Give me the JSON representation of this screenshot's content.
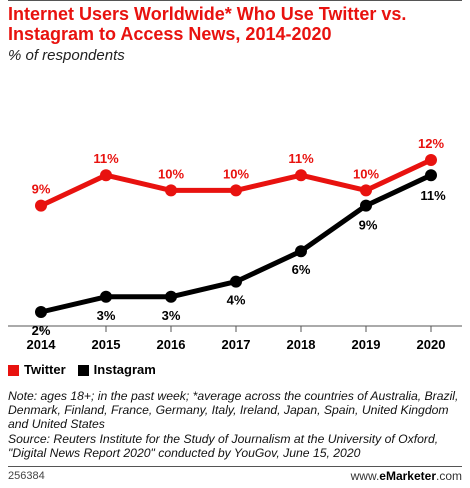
{
  "header": {
    "title": "Internet Users Worldwide* Who Use Twitter vs. Instagram to Access News, 2014-2020",
    "subtitle": "% of respondents"
  },
  "colors": {
    "twitter": "#e8120f",
    "instagram": "#000000",
    "axis": "#555555"
  },
  "chart_data": {
    "type": "line",
    "title": "Internet Users Worldwide* Who Use Twitter vs. Instagram to Access News, 2014-2020",
    "subtitle": "% of respondents",
    "x": [
      "2014",
      "2015",
      "2016",
      "2017",
      "2018",
      "2019",
      "2020"
    ],
    "series": [
      {
        "name": "Twitter",
        "color": "#e8120f",
        "values": [
          9,
          11,
          10,
          10,
          11,
          10,
          12
        ],
        "labels": [
          "9%",
          "11%",
          "10%",
          "10%",
          "11%",
          "10%",
          "12%"
        ]
      },
      {
        "name": "Instagram",
        "color": "#000000",
        "values": [
          2,
          3,
          3,
          4,
          6,
          9,
          11
        ],
        "labels": [
          "2%",
          "3%",
          "3%",
          "4%",
          "6%",
          "9%",
          "11%"
        ]
      }
    ],
    "legend_position": "bottom-left",
    "grid": false
  },
  "notes": {
    "note": "Note: ages 18+; in the past week; *average across the countries of Australia, Brazil, Denmark, Finland, France, Germany, Italy, Ireland, Japan, Spain, United Kingdom and United States",
    "source": "Source: Reuters Institute for the Study of Journalism at the University of Oxford, \"Digital News Report 2020\" conducted by YouGov, June 15, 2020"
  },
  "footer": {
    "chart_id": "256384",
    "brand_prefix": "www.",
    "brand_name": "eMarketer",
    "brand_suffix": ".com"
  }
}
